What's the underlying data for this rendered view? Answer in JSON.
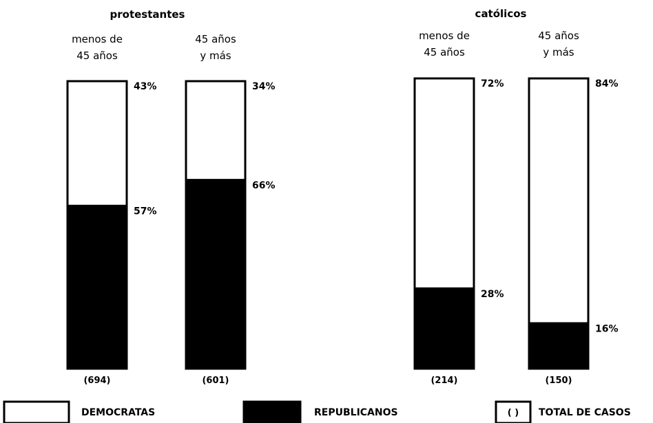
{
  "colors": {
    "democratas": "#ffffff",
    "republicanos": "#000000",
    "outline": "#000000"
  },
  "chart_data": {
    "type": "bar",
    "stacked": true,
    "percent": true,
    "groups": [
      {
        "title": "protestantes",
        "bars": [
          {
            "label": [
              "menos de",
              "45 años"
            ],
            "democratas": 43,
            "republicanos": 57,
            "democratas_label": "43%",
            "republicanos_label": "57%",
            "total_label": "(694)"
          },
          {
            "label": [
              "45 años",
              "y más"
            ],
            "democratas": 34,
            "republicanos": 66,
            "democratas_label": "34%",
            "republicanos_label": "66%",
            "total_label": "(601)"
          }
        ]
      },
      {
        "title": "católicos",
        "bars": [
          {
            "label": [
              "menos de",
              "45 años"
            ],
            "democratas": 72,
            "republicanos": 28,
            "democratas_label": "72%",
            "republicanos_label": "28%",
            "total_label": "(214)"
          },
          {
            "label": [
              "45 años",
              "y más"
            ],
            "democratas": 84,
            "republicanos": 16,
            "democratas_label": "84%",
            "republicanos_label": "16%",
            "total_label": "(150)"
          }
        ]
      }
    ],
    "legend": [
      {
        "key": "democratas",
        "label": "DEMOCRATAS"
      },
      {
        "key": "republicanos",
        "label": "REPUBLICANOS"
      },
      {
        "key": "total",
        "label": "TOTAL DE CASOS",
        "symbol": "(     )"
      }
    ]
  }
}
